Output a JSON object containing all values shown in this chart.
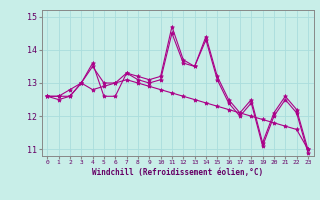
{
  "title": "",
  "xlabel": "Windchill (Refroidissement éolien,°C)",
  "ylabel": "",
  "background_color": "#c8eee8",
  "grid_color": "#aadddd",
  "line_color": "#aa0088",
  "x_hours": [
    0,
    1,
    2,
    3,
    4,
    5,
    6,
    7,
    8,
    9,
    10,
    11,
    12,
    13,
    14,
    15,
    16,
    17,
    18,
    19,
    20,
    21,
    22,
    23
  ],
  "series1": [
    12.6,
    12.5,
    12.6,
    13.0,
    13.6,
    12.6,
    12.6,
    13.3,
    13.1,
    13.0,
    13.1,
    14.5,
    13.6,
    13.5,
    14.4,
    13.2,
    12.5,
    12.1,
    12.5,
    11.2,
    12.1,
    12.6,
    12.2,
    11.0
  ],
  "series2": [
    12.6,
    12.6,
    12.6,
    13.0,
    12.8,
    12.9,
    13.0,
    13.1,
    13.0,
    12.9,
    12.8,
    12.7,
    12.6,
    12.5,
    12.4,
    12.3,
    12.2,
    12.1,
    12.0,
    11.9,
    11.8,
    11.7,
    11.6,
    11.0
  ],
  "series3": [
    12.6,
    12.6,
    12.8,
    13.0,
    13.5,
    13.0,
    13.0,
    13.3,
    13.2,
    13.1,
    13.2,
    14.7,
    13.7,
    13.5,
    14.3,
    13.1,
    12.4,
    12.0,
    12.4,
    11.1,
    12.0,
    12.5,
    12.1,
    10.9
  ],
  "ylim": [
    10.8,
    15.2
  ],
  "yticks": [
    11,
    12,
    13,
    14,
    15
  ],
  "xtick_labels": [
    "0",
    "1",
    "2",
    "3",
    "4",
    "5",
    "6",
    "7",
    "8",
    "9",
    "10",
    "11",
    "12",
    "13",
    "14",
    "15",
    "16",
    "17",
    "18",
    "19",
    "20",
    "21",
    "22",
    "23"
  ],
  "font_color": "#660066",
  "marker": "*",
  "markersize": 3,
  "linewidth": 0.8
}
